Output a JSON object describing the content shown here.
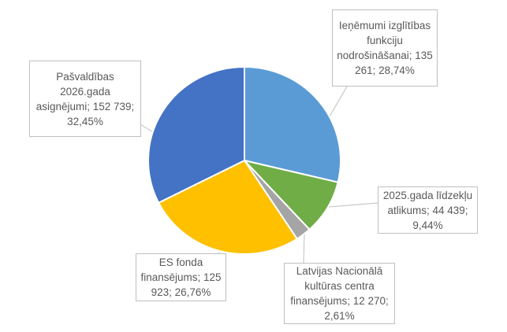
{
  "chart_data": {
    "type": "pie",
    "title": "",
    "slices": [
      {
        "label": "Ieņēmumi izglītības funkciju nodrošināšanai",
        "value": 135261,
        "percent": 28.74,
        "text": "Ieņēmumi izglītības funkciju nodrošināšanai; 135 261; 28,74%",
        "color": "#5B9BD5"
      },
      {
        "label": "2025.gada līdzekļu atlikums",
        "value": 44439,
        "percent": 9.44,
        "text": "2025.gada līdzekļu atlikums; 44 439; 9,44%",
        "color": "#70AD47"
      },
      {
        "label": "Latvijas Nacionālā kultūras centra finansējums",
        "value": 12270,
        "percent": 2.61,
        "text": "Latvijas Nacionālā kultūras centra finansējums; 12 270; 2,61%",
        "color": "#A5A5A5"
      },
      {
        "label": "ES fonda finansējums",
        "value": 125923,
        "percent": 26.76,
        "text": "ES fonda finansējums; 125 923; 26,76%",
        "color": "#FFC000"
      },
      {
        "label": "Pašvaldības 2026.gada asignējumi",
        "value": 152739,
        "percent": 32.45,
        "text": "Pašvaldības 2026.gada asignējumi; 152 739; 32,45%",
        "color": "#4472C4"
      }
    ]
  }
}
